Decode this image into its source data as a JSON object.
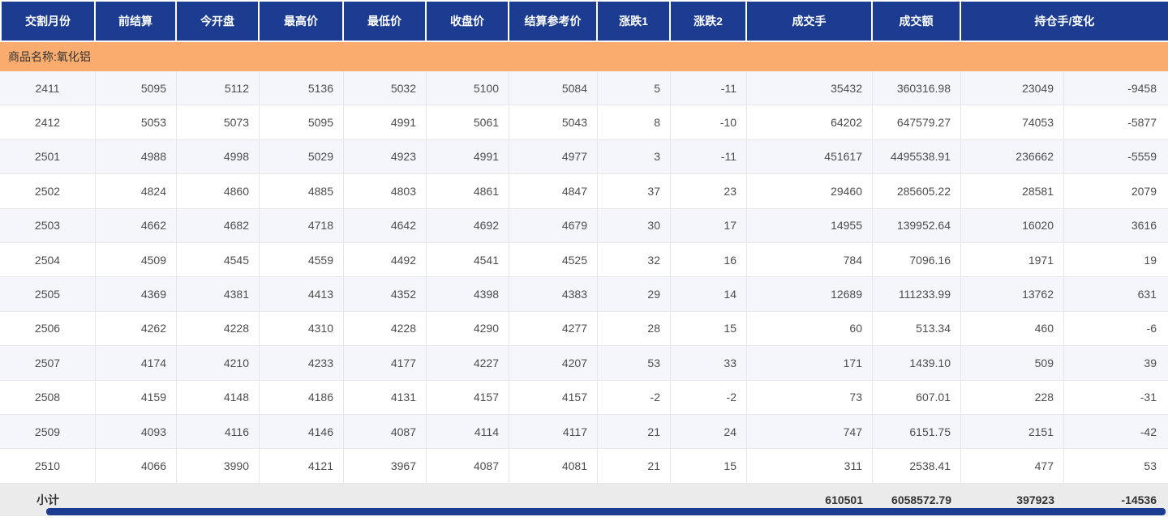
{
  "table": {
    "columns": [
      {
        "key": "delivery-month",
        "label": "交割月份"
      },
      {
        "key": "prev-settlement",
        "label": "前结算"
      },
      {
        "key": "open",
        "label": "今开盘"
      },
      {
        "key": "high",
        "label": "最高价"
      },
      {
        "key": "low",
        "label": "最低价"
      },
      {
        "key": "close",
        "label": "收盘价"
      },
      {
        "key": "settlement-ref",
        "label": "结算参考价"
      },
      {
        "key": "change1",
        "label": "涨跌1"
      },
      {
        "key": "change2",
        "label": "涨跌2"
      },
      {
        "key": "volume",
        "label": "成交手"
      },
      {
        "key": "turnover",
        "label": "成交额"
      },
      {
        "key": "open-interest-change",
        "label": "持仓手/变化"
      }
    ],
    "group_header": "商品名称:氧化铝",
    "rows": [
      [
        "2411",
        "5095",
        "5112",
        "5136",
        "5032",
        "5100",
        "5084",
        "5",
        "-11",
        "35432",
        "360316.98",
        "23049",
        "-9458"
      ],
      [
        "2412",
        "5053",
        "5073",
        "5095",
        "4991",
        "5061",
        "5043",
        "8",
        "-10",
        "64202",
        "647579.27",
        "74053",
        "-5877"
      ],
      [
        "2501",
        "4988",
        "4998",
        "5029",
        "4923",
        "4991",
        "4977",
        "3",
        "-11",
        "451617",
        "4495538.91",
        "236662",
        "-5559"
      ],
      [
        "2502",
        "4824",
        "4860",
        "4885",
        "4803",
        "4861",
        "4847",
        "37",
        "23",
        "29460",
        "285605.22",
        "28581",
        "2079"
      ],
      [
        "2503",
        "4662",
        "4682",
        "4718",
        "4642",
        "4692",
        "4679",
        "30",
        "17",
        "14955",
        "139952.64",
        "16020",
        "3616"
      ],
      [
        "2504",
        "4509",
        "4545",
        "4559",
        "4492",
        "4541",
        "4525",
        "32",
        "16",
        "784",
        "7096.16",
        "1971",
        "19"
      ],
      [
        "2505",
        "4369",
        "4381",
        "4413",
        "4352",
        "4398",
        "4383",
        "29",
        "14",
        "12689",
        "111233.99",
        "13762",
        "631"
      ],
      [
        "2506",
        "4262",
        "4228",
        "4310",
        "4228",
        "4290",
        "4277",
        "28",
        "15",
        "60",
        "513.34",
        "460",
        "-6"
      ],
      [
        "2507",
        "4174",
        "4210",
        "4233",
        "4177",
        "4227",
        "4207",
        "53",
        "33",
        "171",
        "1439.10",
        "509",
        "39"
      ],
      [
        "2508",
        "4159",
        "4148",
        "4186",
        "4131",
        "4157",
        "4157",
        "-2",
        "-2",
        "73",
        "607.01",
        "228",
        "-31"
      ],
      [
        "2509",
        "4093",
        "4116",
        "4146",
        "4087",
        "4114",
        "4117",
        "21",
        "24",
        "747",
        "6151.75",
        "2151",
        "-42"
      ],
      [
        "2510",
        "4066",
        "3990",
        "4121",
        "3967",
        "4087",
        "4081",
        "21",
        "15",
        "311",
        "2538.41",
        "477",
        "53"
      ]
    ],
    "subtotal": {
      "label": "小计",
      "volume": "610501",
      "turnover": "6058572.79",
      "open_interest": "397923",
      "oi_change": "-14536"
    }
  },
  "colors": {
    "header_bg": "#1b3c90",
    "group_bg": "#f9ac6e",
    "row_alt_bg": "#f4f6fb",
    "subtotal_bg": "#ebebeb",
    "scrollbar": "#1b3c90"
  }
}
